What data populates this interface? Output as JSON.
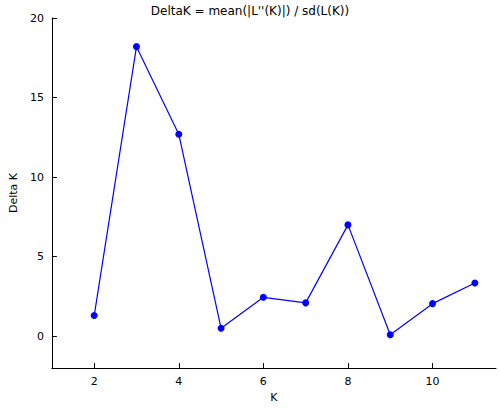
{
  "chart_data": {
    "type": "line",
    "title": "DeltaK = mean(|L''(K)|) / sd(L(K))",
    "x_label": "K",
    "y_label": "Delta K",
    "x": [
      2,
      3,
      4,
      5,
      6,
      7,
      8,
      9,
      10,
      11
    ],
    "values": [
      1.3,
      18.2,
      12.7,
      0.5,
      2.45,
      2.1,
      7.0,
      0.1,
      2.05,
      3.35
    ],
    "color": "#0000ff",
    "marker": "circle",
    "line_style": "solid",
    "xlim": [
      1,
      11.5
    ],
    "xticks": [
      2,
      4,
      6,
      8,
      10
    ],
    "ylim": [
      -2,
      20
    ],
    "yticks": [
      0,
      5,
      10,
      15,
      20
    ],
    "grid": false
  }
}
